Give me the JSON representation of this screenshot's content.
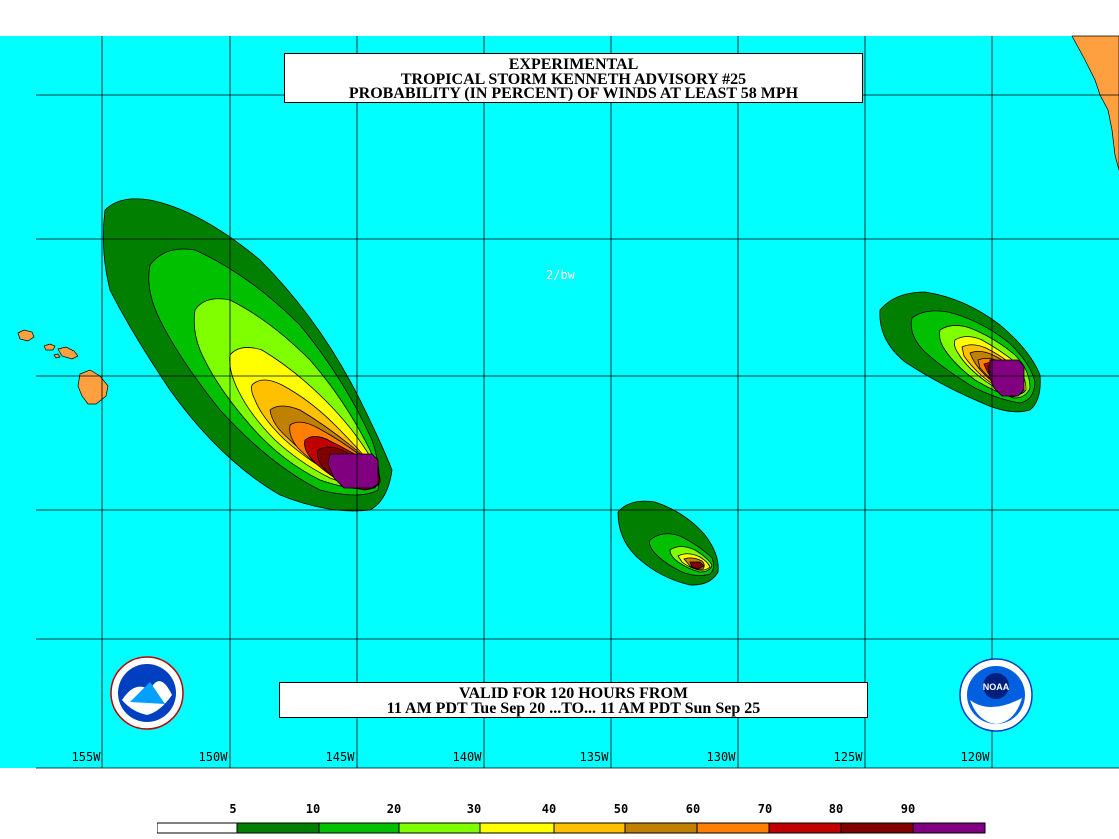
{
  "title": {
    "line1": "EXPERIMENTAL",
    "line2": "TROPICAL STORM KENNETH ADVISORY #25",
    "line3": "PROBABILITY (IN PERCENT) OF WINDS AT LEAST 58 MPH"
  },
  "valid": {
    "line1": "VALID FOR 120 HOURS FROM",
    "line2": "11 AM PDT Tue Sep 20 ...TO... 11 AM PDT Sun Sep 25"
  },
  "initials": "2/bw",
  "longitude_labels": [
    "155W",
    "150W",
    "145W",
    "140W",
    "135W",
    "130W",
    "125W",
    "120W"
  ],
  "legend": {
    "labels": [
      "5",
      "10",
      "20",
      "30",
      "40",
      "50",
      "60",
      "70",
      "80",
      "90"
    ],
    "colors": [
      "#ffffff",
      "#007f00",
      "#00c000",
      "#80ff00",
      "#ffff00",
      "#ffc000",
      "#c08000",
      "#ff8000",
      "#c00000",
      "#800000",
      "#800080"
    ]
  },
  "colors": {
    "ocean": "#00ffff",
    "land": "#ffa040",
    "grid": "#000000"
  },
  "icons": [
    "nws-logo-icon",
    "noaa-logo-icon"
  ]
}
